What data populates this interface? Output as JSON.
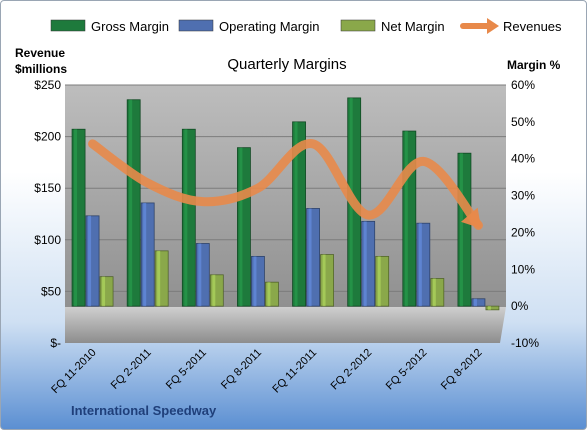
{
  "chart_data": {
    "type": "bar",
    "title": "Quarterly Margins",
    "ylabel_left": [
      "Revenue",
      "$millions"
    ],
    "ylabel_right": "Margin %",
    "footer": "International Speedway",
    "categories": [
      "FQ 11-2010",
      "FQ 2-2011",
      "FQ 5-2011",
      "FQ 8-2011",
      "FQ 11-2011",
      "FQ 2-2012",
      "FQ 5-2012",
      "FQ 8-2012"
    ],
    "left_axis": {
      "min": 0,
      "max": 250,
      "ticks": [
        0,
        50,
        100,
        150,
        200,
        250
      ],
      "tick_labels": [
        "$-",
        "$50",
        "$100",
        "$150",
        "$200",
        "$250"
      ]
    },
    "right_axis": {
      "min": -10,
      "max": 60,
      "ticks": [
        -10,
        0,
        10,
        20,
        30,
        40,
        50,
        60
      ],
      "tick_labels": [
        "-10%",
        "0%",
        "10%",
        "20%",
        "30%",
        "40%",
        "50%",
        "60%"
      ]
    },
    "series": [
      {
        "name": "Gross Margin",
        "axis": "right",
        "kind": "bar",
        "color": "#1e7a3c",
        "values": [
          48,
          56,
          48,
          43,
          50,
          56.5,
          47.5,
          41.5
        ]
      },
      {
        "name": "Operating Margin",
        "axis": "right",
        "kind": "bar",
        "color": "#4f6fb0",
        "values": [
          24.5,
          28,
          17,
          13.5,
          26.5,
          23,
          22.5,
          2
        ]
      },
      {
        "name": "Net Margin",
        "axis": "right",
        "kind": "bar",
        "color": "#8aa84a",
        "values": [
          8,
          15,
          8.5,
          6.5,
          14,
          13.5,
          7.5,
          -1
        ]
      },
      {
        "name": "Revenues",
        "axis": "left",
        "kind": "arrow-line",
        "color": "#e8894a",
        "values": [
          193,
          155,
          137,
          150,
          193,
          124,
          176,
          114
        ]
      }
    ],
    "legend": [
      {
        "label": "Gross Margin",
        "symbol": "bar",
        "color": "#1e7a3c"
      },
      {
        "label": "Operating Margin",
        "symbol": "bar",
        "color": "#4f6fb0"
      },
      {
        "label": "Net Margin",
        "symbol": "bar",
        "color": "#8aa84a"
      },
      {
        "label": "Revenues",
        "symbol": "arrow",
        "color": "#e8894a"
      }
    ]
  }
}
